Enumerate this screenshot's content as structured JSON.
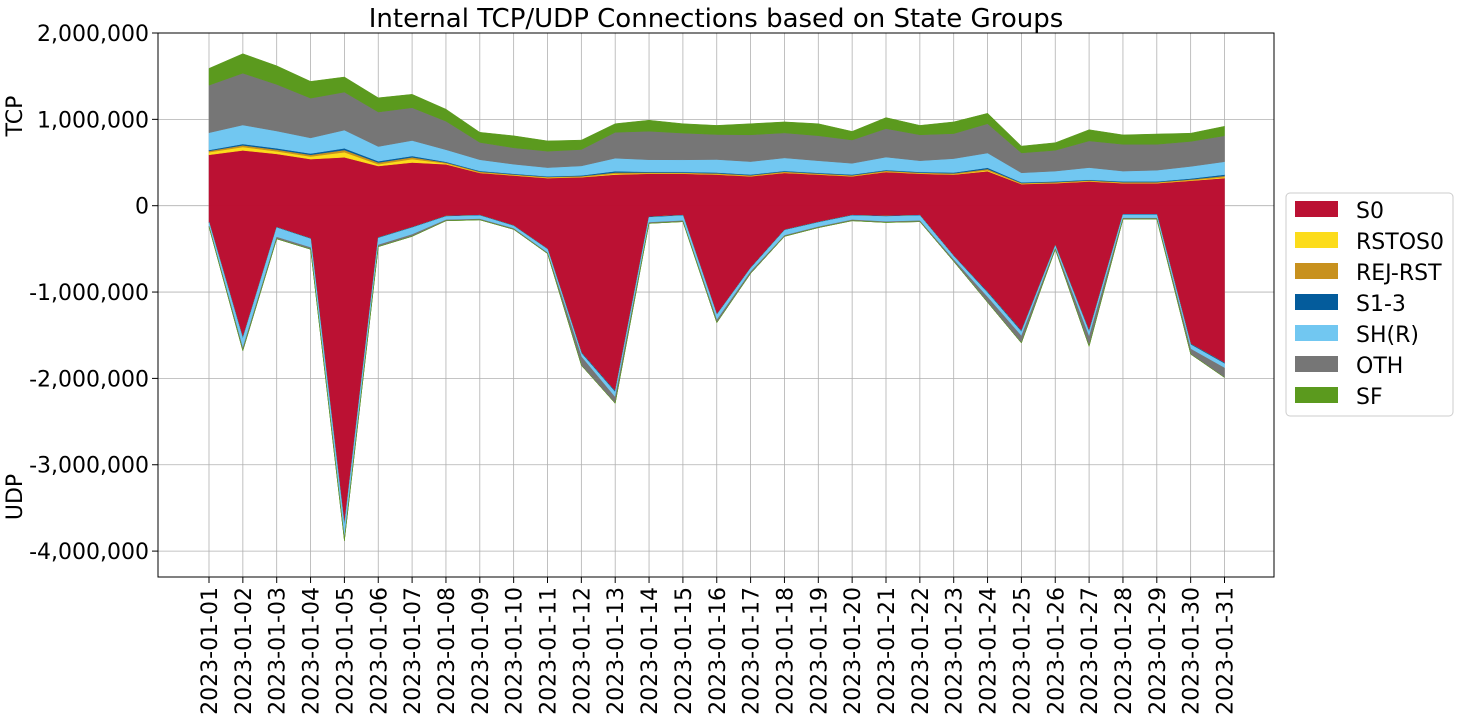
{
  "chart_data": {
    "type": "area",
    "title": "Internal TCP/UDP Connections based on State Groups",
    "upper_label": "TCP",
    "lower_label": "UDP",
    "xlabel": "",
    "ylim": [
      -4300000,
      2000000
    ],
    "yticks": [
      2000000,
      1000000,
      0,
      -1000000,
      -2000000,
      -3000000,
      -4000000
    ],
    "ytick_labels": [
      "2,000,000",
      "1,000,000",
      "0",
      "-1,000,000",
      "-2,000,000",
      "-3,000,000",
      "-4,000,000"
    ],
    "grid": true,
    "legend_position": "right",
    "categories": [
      "2023-01-01",
      "2023-01-02",
      "2023-01-03",
      "2023-01-04",
      "2023-01-05",
      "2023-01-06",
      "2023-01-07",
      "2023-01-08",
      "2023-01-09",
      "2023-01-10",
      "2023-01-11",
      "2023-01-12",
      "2023-01-13",
      "2023-01-14",
      "2023-01-15",
      "2023-01-16",
      "2023-01-17",
      "2023-01-18",
      "2023-01-19",
      "2023-01-20",
      "2023-01-21",
      "2023-01-22",
      "2023-01-23",
      "2023-01-24",
      "2023-01-25",
      "2023-01-26",
      "2023-01-27",
      "2023-01-28",
      "2023-01-29",
      "2023-01-30",
      "2023-01-31"
    ],
    "series": [
      {
        "name": "S0",
        "color": "#bb1133",
        "tcp": [
          590000,
          640000,
          600000,
          540000,
          560000,
          460000,
          500000,
          480000,
          380000,
          350000,
          320000,
          330000,
          360000,
          370000,
          370000,
          360000,
          340000,
          380000,
          360000,
          340000,
          390000,
          370000,
          360000,
          400000,
          250000,
          260000,
          280000,
          260000,
          260000,
          290000,
          320000
        ],
        "udp": [
          -190000,
          -1530000,
          -250000,
          -380000,
          -3700000,
          -370000,
          -250000,
          -120000,
          -110000,
          -230000,
          -500000,
          -1700000,
          -2150000,
          -130000,
          -110000,
          -1260000,
          -720000,
          -280000,
          -190000,
          -110000,
          -120000,
          -110000,
          -580000,
          -1000000,
          -1450000,
          -460000,
          -1450000,
          -100000,
          -100000,
          -1600000,
          -1820000
        ]
      },
      {
        "name": "RSTOS0",
        "color": "#fcdc1b",
        "tcp": [
          30000,
          40000,
          30000,
          30000,
          60000,
          20000,
          40000,
          10000,
          5000,
          5000,
          5000,
          5000,
          10000,
          5000,
          5000,
          5000,
          5000,
          5000,
          5000,
          5000,
          5000,
          5000,
          5000,
          10000,
          5000,
          5000,
          5000,
          5000,
          5000,
          5000,
          10000
        ],
        "udp": [
          0,
          0,
          0,
          0,
          0,
          0,
          0,
          0,
          0,
          0,
          0,
          0,
          0,
          0,
          0,
          0,
          0,
          0,
          0,
          0,
          0,
          0,
          0,
          0,
          0,
          0,
          0,
          0,
          0,
          0,
          0
        ]
      },
      {
        "name": "REJ-RST",
        "color": "#c8911e",
        "tcp": [
          15000,
          20000,
          20000,
          20000,
          25000,
          20000,
          20000,
          10000,
          10000,
          8000,
          8000,
          8000,
          15000,
          10000,
          8000,
          10000,
          8000,
          10000,
          8000,
          8000,
          10000,
          8000,
          10000,
          15000,
          8000,
          8000,
          8000,
          8000,
          8000,
          10000,
          15000
        ],
        "udp": [
          0,
          0,
          0,
          0,
          0,
          0,
          0,
          0,
          0,
          0,
          0,
          0,
          0,
          0,
          0,
          0,
          0,
          0,
          0,
          0,
          0,
          0,
          0,
          0,
          0,
          0,
          0,
          0,
          0,
          0,
          0
        ]
      },
      {
        "name": "S1-3",
        "color": "#045c9c",
        "tcp": [
          10000,
          15000,
          15000,
          15000,
          20000,
          15000,
          15000,
          8000,
          8000,
          8000,
          8000,
          8000,
          15000,
          8000,
          8000,
          10000,
          8000,
          8000,
          8000,
          8000,
          8000,
          8000,
          10000,
          15000,
          8000,
          8000,
          8000,
          8000,
          8000,
          10000,
          15000
        ],
        "udp": [
          -5000,
          -10000,
          -5000,
          -5000,
          -10000,
          -5000,
          -5000,
          -5000,
          -5000,
          -5000,
          -5000,
          -10000,
          -10000,
          -5000,
          -5000,
          -5000,
          -5000,
          -5000,
          -5000,
          -5000,
          -5000,
          -5000,
          -5000,
          -10000,
          -10000,
          -5000,
          -10000,
          -5000,
          -5000,
          -10000,
          -10000
        ]
      },
      {
        "name": "SH(R)",
        "color": "#71c7f1",
        "tcp": [
          200000,
          220000,
          200000,
          180000,
          210000,
          170000,
          180000,
          140000,
          130000,
          110000,
          100000,
          110000,
          150000,
          140000,
          140000,
          150000,
          150000,
          150000,
          140000,
          130000,
          150000,
          130000,
          160000,
          170000,
          110000,
          120000,
          140000,
          120000,
          130000,
          140000,
          150000
        ],
        "udp": [
          -40000,
          -110000,
          -110000,
          -100000,
          -140000,
          -80000,
          -80000,
          -40000,
          -40000,
          -30000,
          -40000,
          -40000,
          -60000,
          -60000,
          -60000,
          -60000,
          -40000,
          -60000,
          -50000,
          -50000,
          -60000,
          -60000,
          -40000,
          -50000,
          -50000,
          -30000,
          -60000,
          -40000,
          -40000,
          -50000,
          -50000
        ]
      },
      {
        "name": "OTH",
        "color": "#767676",
        "tcp": [
          550000,
          600000,
          540000,
          460000,
          440000,
          400000,
          380000,
          330000,
          200000,
          190000,
          190000,
          190000,
          300000,
          330000,
          310000,
          290000,
          310000,
          290000,
          290000,
          270000,
          330000,
          300000,
          290000,
          340000,
          230000,
          240000,
          310000,
          310000,
          300000,
          290000,
          300000
        ],
        "udp": [
          -10000,
          -30000,
          -20000,
          -20000,
          -30000,
          -20000,
          -20000,
          -10000,
          -10000,
          -10000,
          -10000,
          -100000,
          -70000,
          -10000,
          -10000,
          -30000,
          -20000,
          -10000,
          -10000,
          -10000,
          -10000,
          -10000,
          -20000,
          -60000,
          -80000,
          -10000,
          -110000,
          -10000,
          -10000,
          -60000,
          -110000
        ]
      },
      {
        "name": "SF",
        "color": "#5b9a1e",
        "tcp": [
          195000,
          225000,
          215000,
          195000,
          175000,
          165000,
          155000,
          140000,
          117000,
          139000,
          119000,
          109000,
          100000,
          127000,
          109000,
          105000,
          129000,
          127000,
          139000,
          99000,
          127000,
          109000,
          135000,
          120000,
          79000,
          89000,
          129000,
          109000,
          119000,
          95000,
          110000
        ],
        "udp": [
          0,
          0,
          0,
          0,
          0,
          0,
          0,
          0,
          0,
          0,
          0,
          0,
          0,
          0,
          0,
          0,
          0,
          0,
          0,
          0,
          0,
          0,
          0,
          0,
          0,
          0,
          0,
          0,
          0,
          0,
          0
        ]
      }
    ]
  }
}
